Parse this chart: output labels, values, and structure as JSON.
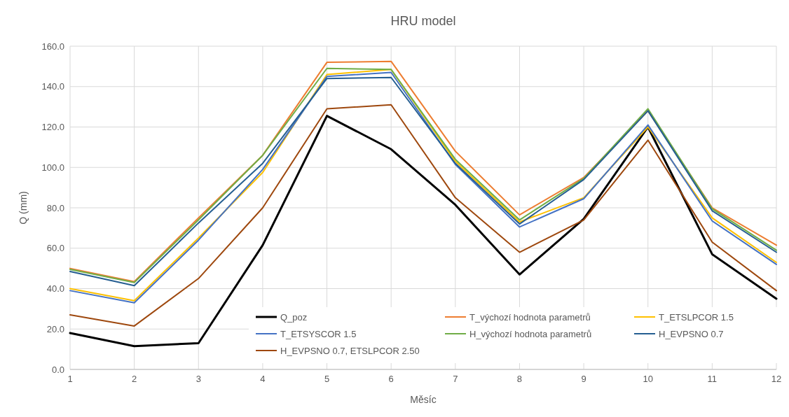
{
  "chart_data": {
    "type": "line",
    "title": "HRU model",
    "xlabel": "Měsíc",
    "ylabel": "Q (mm)",
    "x": [
      1,
      2,
      3,
      4,
      5,
      6,
      7,
      8,
      9,
      10,
      11,
      12
    ],
    "xlim": [
      1,
      12
    ],
    "xticks": [
      1,
      2,
      3,
      4,
      5,
      6,
      7,
      8,
      9,
      10,
      11,
      12
    ],
    "ylim": [
      0,
      160
    ],
    "yticks": [
      {
        "value": 0,
        "label": "0.0"
      },
      {
        "value": 20,
        "label": "20.0"
      },
      {
        "value": 40,
        "label": "40.0"
      },
      {
        "value": 60,
        "label": "60.0"
      },
      {
        "value": 80,
        "label": "80.0"
      },
      {
        "value": 100,
        "label": "100.0"
      },
      {
        "value": 120,
        "label": "120.0"
      },
      {
        "value": 140,
        "label": "140.0"
      },
      {
        "value": 160,
        "label": "160.0"
      }
    ],
    "grid": true,
    "legend": "bottom",
    "marker": "none",
    "line_style": "solid",
    "series": [
      {
        "name": "Q_poz",
        "color": "#000000",
        "values": [
          18,
          11.5,
          13,
          61.5,
          125.5,
          109,
          81.5,
          47,
          74.5,
          120,
          57,
          35
        ]
      },
      {
        "name": "T_výchozí hodnota parametrů",
        "color": "#ed7d31",
        "values": [
          50,
          43.5,
          75,
          106,
          152,
          152.5,
          108,
          76.5,
          95,
          128,
          80,
          61.5
        ]
      },
      {
        "name": "T_ETSLPCOR 1.5",
        "color": "#ffc000",
        "values": [
          40,
          34,
          65,
          97.5,
          146,
          148.5,
          103,
          73,
          85,
          120,
          75,
          53
        ]
      },
      {
        "name": "T_ETSYSCOR 1.5",
        "color": "#4472c4",
        "values": [
          39,
          33,
          64,
          99,
          145,
          147,
          101.5,
          70.5,
          84.5,
          121,
          73.5,
          52
        ]
      },
      {
        "name": "H_výchozí hodnota parametrů",
        "color": "#70ad47",
        "values": [
          49.5,
          43,
          74,
          106,
          149,
          148.5,
          104,
          74,
          94.5,
          129,
          79.5,
          59
        ]
      },
      {
        "name": "H_EVPSNO 0.7",
        "color": "#255e91",
        "values": [
          48.5,
          41.5,
          72.5,
          102,
          144,
          144.5,
          102,
          72,
          94,
          128,
          78.5,
          58
        ]
      },
      {
        "name": "H_EVPSNO 0.7, ETSLPCOR 2.50",
        "color": "#9e480e",
        "values": [
          27,
          21.5,
          45,
          80,
          129,
          131,
          85,
          58,
          74,
          113.5,
          63,
          39
        ]
      }
    ]
  }
}
